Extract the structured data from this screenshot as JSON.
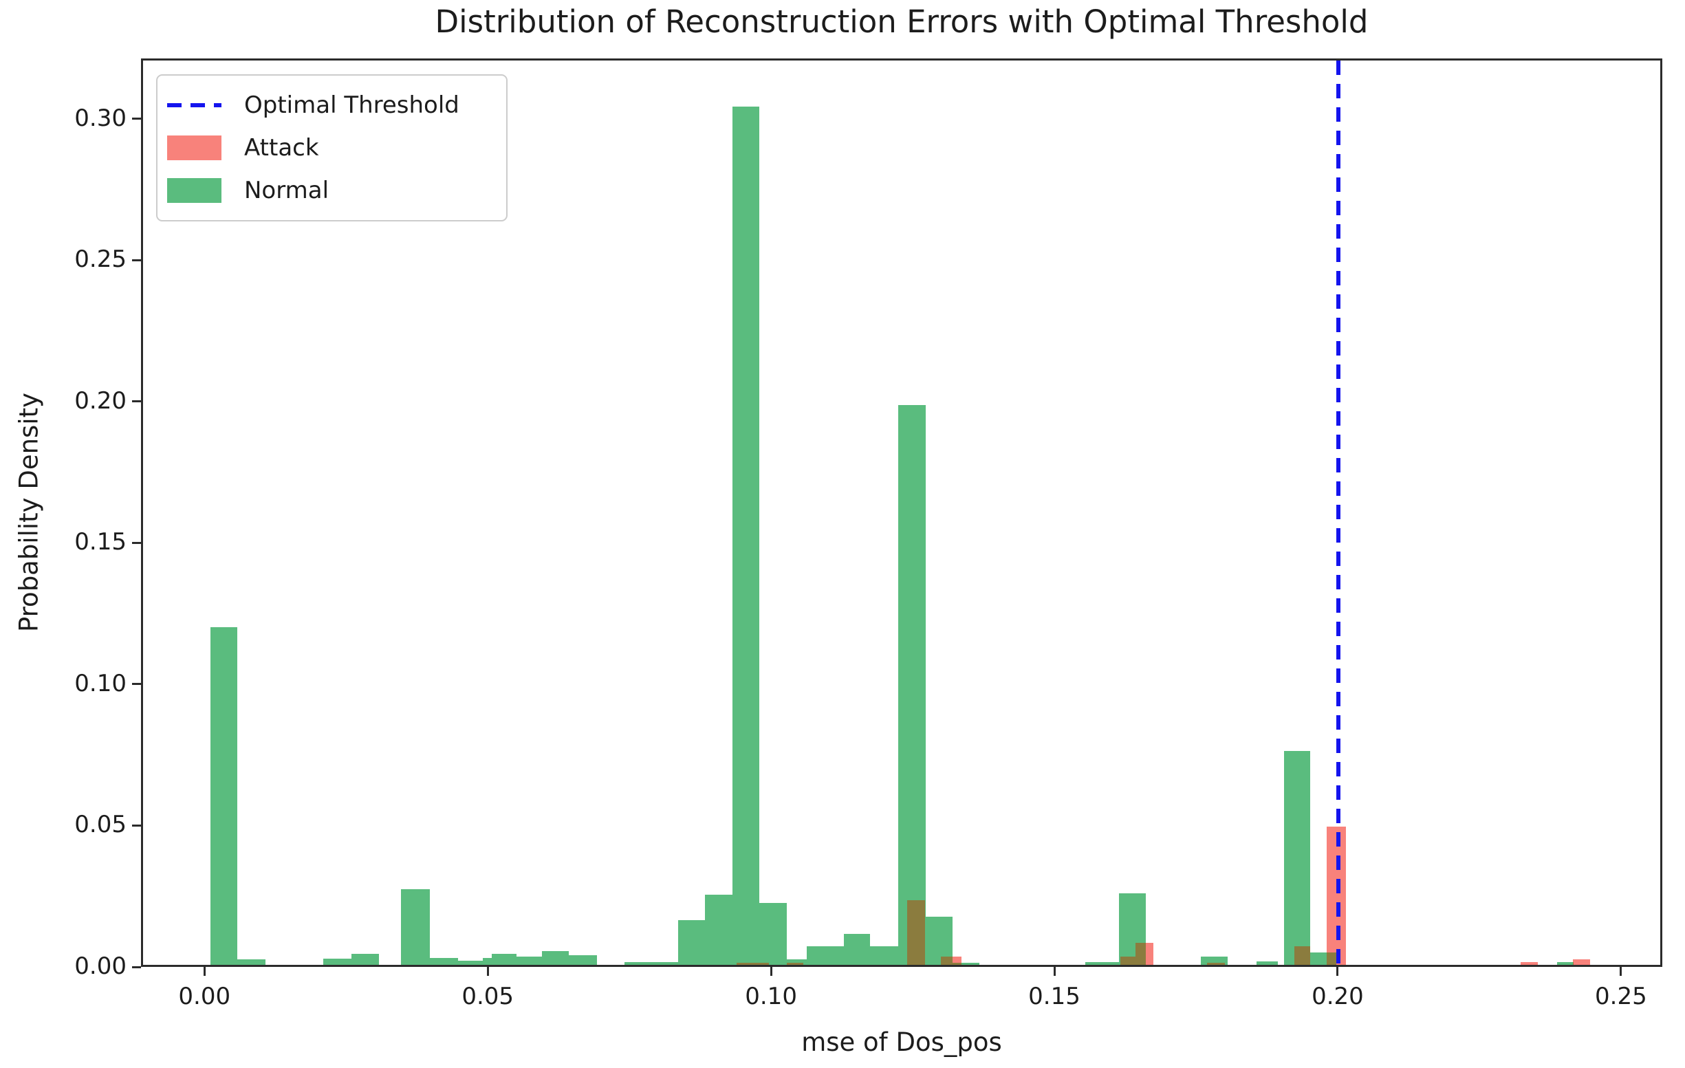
{
  "chart_data": {
    "type": "histogram",
    "title": "Distribution of Reconstruction Errors with Optimal Threshold",
    "xlabel": "mse of Dos_pos",
    "ylabel": "Probability Density",
    "xlim": [
      -0.0112,
      0.2573
    ],
    "ylim": [
      0,
      0.3213
    ],
    "grid": false,
    "legend_position": "upper-left",
    "xticks": [
      {
        "value": 0.0,
        "label": "0.00"
      },
      {
        "value": 0.05,
        "label": "0.05"
      },
      {
        "value": 0.1,
        "label": "0.10"
      },
      {
        "value": 0.15,
        "label": "0.15"
      },
      {
        "value": 0.2,
        "label": "0.20"
      },
      {
        "value": 0.25,
        "label": "0.25"
      }
    ],
    "yticks": [
      {
        "value": 0.0,
        "label": "0.00"
      },
      {
        "value": 0.05,
        "label": "0.05"
      },
      {
        "value": 0.1,
        "label": "0.10"
      },
      {
        "value": 0.15,
        "label": "0.15"
      },
      {
        "value": 0.2,
        "label": "0.20"
      },
      {
        "value": 0.25,
        "label": "0.25"
      },
      {
        "value": 0.3,
        "label": "0.30"
      }
    ],
    "threshold": {
      "label": "Optimal Threshold",
      "x": 0.2003,
      "color": "#1414ee",
      "style": "dashed"
    },
    "overlap_color": "#8b7c3e",
    "series": [
      {
        "name": "Normal",
        "color": "#5abc7e",
        "bins": [
          {
            "x": 0.0007,
            "w": 0.0048,
            "h": 0.12
          },
          {
            "x": 0.0055,
            "w": 0.005,
            "h": 0.002
          },
          {
            "x": 0.0207,
            "w": 0.005,
            "h": 0.0023
          },
          {
            "x": 0.0257,
            "w": 0.0049,
            "h": 0.004
          },
          {
            "x": 0.0345,
            "w": 0.0051,
            "h": 0.027
          },
          {
            "x": 0.0396,
            "w": 0.005,
            "h": 0.0025
          },
          {
            "x": 0.0446,
            "w": 0.0043,
            "h": 0.0015
          },
          {
            "x": 0.0489,
            "w": 0.0016,
            "h": 0.0025
          },
          {
            "x": 0.0505,
            "w": 0.0044,
            "h": 0.004
          },
          {
            "x": 0.0549,
            "w": 0.0045,
            "h": 0.003
          },
          {
            "x": 0.0594,
            "w": 0.0048,
            "h": 0.005
          },
          {
            "x": 0.0642,
            "w": 0.0049,
            "h": 0.0035
          },
          {
            "x": 0.074,
            "w": 0.0095,
            "h": 0.001
          },
          {
            "x": 0.0835,
            "w": 0.0048,
            "h": 0.016
          },
          {
            "x": 0.0883,
            "w": 0.0048,
            "h": 0.025
          },
          {
            "x": 0.0931,
            "w": 0.0048,
            "h": 0.305
          },
          {
            "x": 0.0979,
            "w": 0.0048,
            "h": 0.022
          },
          {
            "x": 0.1027,
            "w": 0.0036,
            "h": 0.002
          },
          {
            "x": 0.1063,
            "w": 0.0065,
            "h": 0.0065
          },
          {
            "x": 0.1128,
            "w": 0.0047,
            "h": 0.011
          },
          {
            "x": 0.1175,
            "w": 0.005,
            "h": 0.0065
          },
          {
            "x": 0.1225,
            "w": 0.0048,
            "h": 0.199
          },
          {
            "x": 0.1273,
            "w": 0.0047,
            "h": 0.017
          },
          {
            "x": 0.132,
            "w": 0.0048,
            "h": 0.0008
          },
          {
            "x": 0.1555,
            "w": 0.006,
            "h": 0.001
          },
          {
            "x": 0.1615,
            "w": 0.0048,
            "h": 0.0255
          },
          {
            "x": 0.176,
            "w": 0.0048,
            "h": 0.003
          },
          {
            "x": 0.1858,
            "w": 0.0038,
            "h": 0.0012
          },
          {
            "x": 0.1907,
            "w": 0.0047,
            "h": 0.076
          },
          {
            "x": 0.1954,
            "w": 0.0046,
            "h": 0.0045
          },
          {
            "x": 0.239,
            "w": 0.003,
            "h": 0.001
          }
        ]
      },
      {
        "name": "Attack",
        "color": "#f8827b",
        "bins": [
          {
            "x": 0.0938,
            "w": 0.0057,
            "h": 0.0008
          },
          {
            "x": 0.1027,
            "w": 0.003,
            "h": 0.0008
          },
          {
            "x": 0.124,
            "w": 0.0032,
            "h": 0.023
          },
          {
            "x": 0.13,
            "w": 0.0036,
            "h": 0.003
          },
          {
            "x": 0.1617,
            "w": 0.0027,
            "h": 0.003
          },
          {
            "x": 0.1644,
            "w": 0.0032,
            "h": 0.0078
          },
          {
            "x": 0.1771,
            "w": 0.0032,
            "h": 0.0008
          },
          {
            "x": 0.1925,
            "w": 0.0029,
            "h": 0.0065
          },
          {
            "x": 0.1983,
            "w": 0.0034,
            "h": 0.049
          },
          {
            "x": 0.2326,
            "w": 0.003,
            "h": 0.001
          },
          {
            "x": 0.2419,
            "w": 0.003,
            "h": 0.002
          }
        ]
      }
    ],
    "legend": [
      {
        "label": "Optimal Threshold",
        "swatch": "dashed-line",
        "color": "#1414ee"
      },
      {
        "label": "Attack",
        "swatch": "patch",
        "color": "#f8827b"
      },
      {
        "label": "Normal",
        "swatch": "patch",
        "color": "#5abc7e"
      }
    ]
  }
}
